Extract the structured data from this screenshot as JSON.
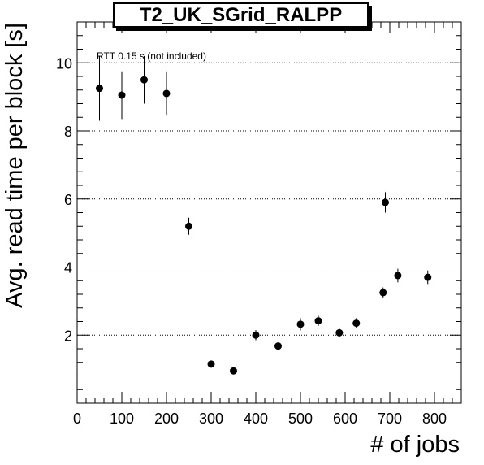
{
  "chart_data": {
    "type": "scatter",
    "title": "T2_UK_SGrid_RALPP",
    "xlabel": "# of jobs",
    "ylabel": "Avg. read time per block [s]",
    "annotation": "RTT 0.15 s (not included)",
    "xlim": [
      0,
      860
    ],
    "ylim": [
      0,
      11.2
    ],
    "xticks": [
      0,
      100,
      200,
      300,
      400,
      500,
      600,
      700,
      800
    ],
    "yticks": [
      2,
      4,
      6,
      8,
      10
    ],
    "grid": "horizontal dotted at y ticks",
    "points": [
      {
        "x": 50,
        "y": 9.25,
        "err": 0.95
      },
      {
        "x": 100,
        "y": 9.05,
        "err": 0.7
      },
      {
        "x": 150,
        "y": 9.5,
        "err": 0.7
      },
      {
        "x": 200,
        "y": 9.1,
        "err": 0.65
      },
      {
        "x": 250,
        "y": 5.2,
        "err": 0.25
      },
      {
        "x": 300,
        "y": 1.15,
        "err": 0.07
      },
      {
        "x": 350,
        "y": 0.95,
        "err": 0.07
      },
      {
        "x": 400,
        "y": 2.0,
        "err": 0.15
      },
      {
        "x": 450,
        "y": 1.68,
        "err": 0.1
      },
      {
        "x": 500,
        "y": 2.32,
        "err": 0.18
      },
      {
        "x": 540,
        "y": 2.42,
        "err": 0.15
      },
      {
        "x": 587,
        "y": 2.07,
        "err": 0.12
      },
      {
        "x": 625,
        "y": 2.35,
        "err": 0.15
      },
      {
        "x": 685,
        "y": 3.25,
        "err": 0.15
      },
      {
        "x": 690,
        "y": 5.9,
        "err": 0.3
      },
      {
        "x": 718,
        "y": 3.75,
        "err": 0.2
      },
      {
        "x": 785,
        "y": 3.7,
        "err": 0.2
      }
    ]
  }
}
